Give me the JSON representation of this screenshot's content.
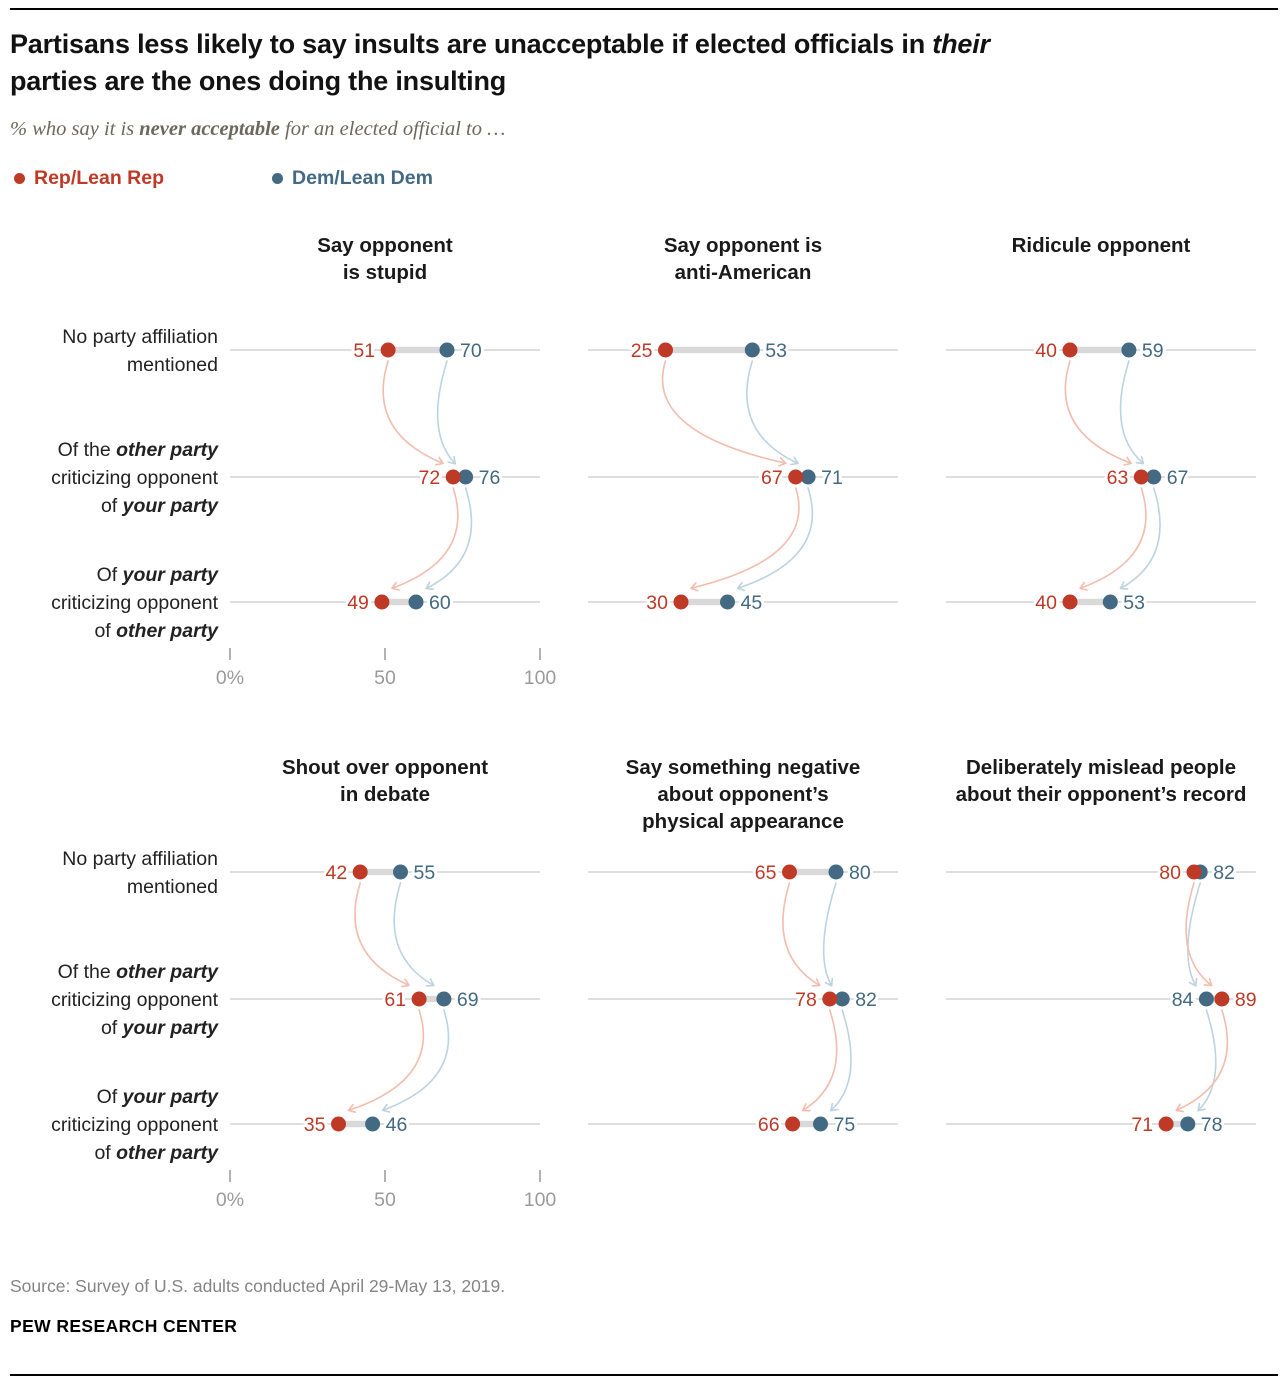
{
  "header": {
    "title_line1_pre": "Partisans less likely to say insults are unacceptable if elected officials in ",
    "title_line1_em": "their",
    "title_line2": "parties are the ones doing the insulting",
    "subtitle_pre": "% who say it is ",
    "subtitle_bold": "never acceptable",
    "subtitle_post": " for an elected official to …"
  },
  "legend": {
    "rep_label": "Rep/Lean Rep",
    "dem_label": "Dem/Lean Dem"
  },
  "chart_data": {
    "type": "dumbbell",
    "series_names": [
      "Rep/Lean Rep",
      "Dem/Lean Dem"
    ],
    "xlim": [
      0,
      100
    ],
    "x_ticks": [
      "0%",
      "50",
      "100"
    ],
    "colors": {
      "rep": "#bf3927",
      "dem": "#436983",
      "rep_light": "#f2bdae",
      "dem_light": "#bed3e0",
      "connector": "#d9d9d9",
      "baseline": "#c9c9c9",
      "axis_text": "#9b9b9b",
      "label_text": "#222222",
      "title_text": "#1a1a1a"
    },
    "row_labels": [
      {
        "lines": [
          [
            {
              "t": "No party affiliation"
            }
          ],
          [
            {
              "t": "mentioned"
            }
          ]
        ]
      },
      {
        "lines": [
          [
            {
              "t": "Of the "
            },
            {
              "t": "other party",
              "em": true
            }
          ],
          [
            {
              "t": "criticizing opponent"
            }
          ],
          [
            {
              "t": "of "
            },
            {
              "t": "your party",
              "em": true
            }
          ]
        ]
      },
      {
        "lines": [
          [
            {
              "t": "Of "
            },
            {
              "t": "your party",
              "em": true
            }
          ],
          [
            {
              "t": "criticizing opponent"
            }
          ],
          [
            {
              "t": "of "
            },
            {
              "t": "other party",
              "em": true
            }
          ]
        ]
      }
    ],
    "panels": [
      {
        "title_lines": [
          "Say opponent",
          "is stupid"
        ],
        "values": [
          {
            "rep": 51,
            "dem": 70
          },
          {
            "rep": 72,
            "dem": 76
          },
          {
            "rep": 49,
            "dem": 60
          }
        ]
      },
      {
        "title_lines": [
          "Say opponent is",
          "anti-American"
        ],
        "values": [
          {
            "rep": 25,
            "dem": 53
          },
          {
            "rep": 67,
            "dem": 71
          },
          {
            "rep": 30,
            "dem": 45
          }
        ]
      },
      {
        "title_lines": [
          "Ridicule opponent"
        ],
        "values": [
          {
            "rep": 40,
            "dem": 59
          },
          {
            "rep": 63,
            "dem": 67
          },
          {
            "rep": 40,
            "dem": 53
          }
        ]
      },
      {
        "title_lines": [
          "Shout over opponent",
          "in debate"
        ],
        "values": [
          {
            "rep": 42,
            "dem": 55
          },
          {
            "rep": 61,
            "dem": 69
          },
          {
            "rep": 35,
            "dem": 46
          }
        ]
      },
      {
        "title_lines": [
          "Say something negative",
          "about opponent’s",
          "physical appearance"
        ],
        "values": [
          {
            "rep": 65,
            "dem": 80
          },
          {
            "rep": 78,
            "dem": 82
          },
          {
            "rep": 66,
            "dem": 75
          }
        ]
      },
      {
        "title_lines": [
          "Deliberately mislead people",
          "about their opponent’s record"
        ],
        "values": [
          {
            "rep": 80,
            "dem": 82
          },
          {
            "rep": 89,
            "dem": 84
          },
          {
            "rep": 71,
            "dem": 78
          }
        ]
      }
    ]
  },
  "footer": {
    "source": "Source: Survey of U.S. adults conducted April 29-May 13, 2019.",
    "brand": "PEW RESEARCH CENTER"
  }
}
